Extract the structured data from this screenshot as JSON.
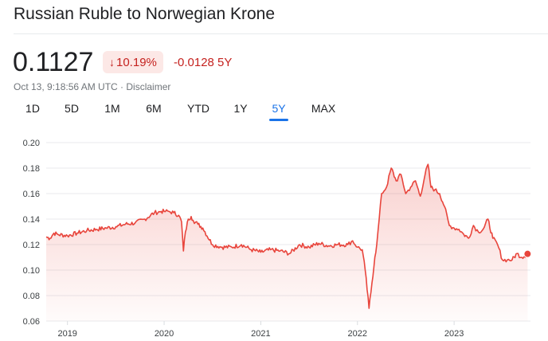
{
  "header": {
    "title": "Russian Ruble to Norwegian Krone"
  },
  "quote": {
    "price": "0.1127",
    "percent_change": "10.19%",
    "change_arrow": "↓",
    "absolute_change": "-0.0128 5Y",
    "timestamp": "Oct 13, 9:18:56 AM UTC · Disclaimer"
  },
  "tabs": [
    {
      "label": "1D",
      "active": false
    },
    {
      "label": "5D",
      "active": false
    },
    {
      "label": "1M",
      "active": false
    },
    {
      "label": "6M",
      "active": false
    },
    {
      "label": "YTD",
      "active": false
    },
    {
      "label": "1Y",
      "active": false
    },
    {
      "label": "5Y",
      "active": true
    },
    {
      "label": "MAX",
      "active": false
    }
  ],
  "colors": {
    "line": "#e8453c",
    "fill": "#fce8e6",
    "active_tab": "#1a73e8",
    "negative": "#c5221f"
  },
  "chart_data": {
    "type": "area",
    "title": "",
    "xlabel": "",
    "ylabel": "",
    "ylim": [
      0.06,
      0.2
    ],
    "y_ticks": [
      "0.20",
      "0.18",
      "0.16",
      "0.14",
      "0.12",
      "0.10",
      "0.08",
      "0.06"
    ],
    "x_ticks": [
      "2019",
      "2020",
      "2021",
      "2022",
      "2023"
    ],
    "grid": true,
    "series": [
      {
        "x": [
          2018.78,
          2018.82,
          2018.86,
          2018.9,
          2019.0,
          2019.1,
          2019.2,
          2019.3,
          2019.4,
          2019.5,
          2019.6,
          2019.7,
          2019.8,
          2019.9,
          2019.97,
          2020.0,
          2020.05,
          2020.1,
          2020.15,
          2020.18,
          2020.2,
          2020.22,
          2020.25,
          2020.28,
          2020.3,
          2020.35,
          2020.4,
          2020.5,
          2020.6,
          2020.7,
          2020.8,
          2020.9,
          2021.0,
          2021.1,
          2021.2,
          2021.3,
          2021.4,
          2021.5,
          2021.6,
          2021.7,
          2021.8,
          2021.9,
          2021.95,
          2022.0,
          2022.05,
          2022.08,
          2022.12,
          2022.15,
          2022.18,
          2022.2,
          2022.25,
          2022.3,
          2022.35,
          2022.4,
          2022.45,
          2022.5,
          2022.55,
          2022.6,
          2022.65,
          2022.7,
          2022.73,
          2022.76,
          2022.8,
          2022.85,
          2022.9,
          2022.95,
          2023.0,
          2023.05,
          2023.1,
          2023.15,
          2023.2,
          2023.25,
          2023.3,
          2023.35,
          2023.4,
          2023.45,
          2023.5,
          2023.55,
          2023.6,
          2023.65,
          2023.7,
          2023.76
        ],
        "y": [
          0.126,
          0.125,
          0.129,
          0.128,
          0.127,
          0.129,
          0.131,
          0.132,
          0.133,
          0.134,
          0.136,
          0.137,
          0.14,
          0.145,
          0.146,
          0.146,
          0.146,
          0.145,
          0.143,
          0.138,
          0.115,
          0.13,
          0.14,
          0.142,
          0.139,
          0.136,
          0.133,
          0.12,
          0.118,
          0.118,
          0.12,
          0.116,
          0.114,
          0.116,
          0.115,
          0.113,
          0.12,
          0.118,
          0.121,
          0.119,
          0.12,
          0.12,
          0.123,
          0.118,
          0.116,
          0.1,
          0.07,
          0.09,
          0.11,
          0.12,
          0.16,
          0.165,
          0.18,
          0.17,
          0.175,
          0.16,
          0.165,
          0.17,
          0.158,
          0.175,
          0.183,
          0.165,
          0.163,
          0.16,
          0.15,
          0.135,
          0.133,
          0.132,
          0.128,
          0.125,
          0.135,
          0.13,
          0.132,
          0.14,
          0.125,
          0.12,
          0.108,
          0.108,
          0.108,
          0.113,
          0.11,
          0.1127
        ]
      }
    ]
  }
}
